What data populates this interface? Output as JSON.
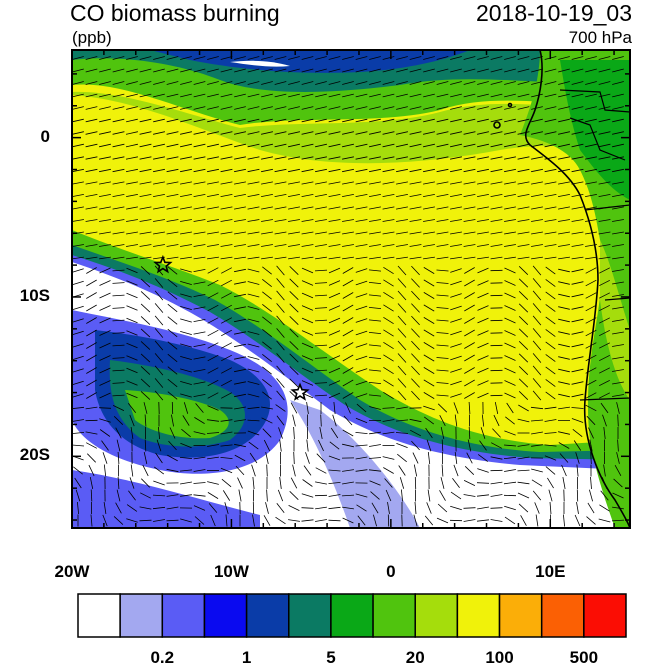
{
  "header": {
    "title": "CO biomass burning",
    "units": "(ppb)",
    "datetime": "2018-10-19_03",
    "level": "700 hPa"
  },
  "axes": {
    "y_ticks": [
      {
        "label": "0",
        "lat": 0
      },
      {
        "label": "10S",
        "lat": -10
      },
      {
        "label": "20S",
        "lat": -20
      }
    ],
    "x_ticks": [
      {
        "label": "20W",
        "lon": -20
      },
      {
        "label": "10W",
        "lon": -10
      },
      {
        "label": "0",
        "lon": 0
      },
      {
        "label": "10E",
        "lon": 10
      }
    ],
    "lon_range": [
      -20,
      15
    ],
    "lat_range": [
      -24.5,
      5.5
    ]
  },
  "colorbar": {
    "colors": [
      "#ffffff",
      "#a3a8f0",
      "#5a5cf5",
      "#0a0af0",
      "#0a3ca8",
      "#0b7a63",
      "#0aa817",
      "#50c40e",
      "#a5dd0c",
      "#f0f20a",
      "#fbae08",
      "#fb6004",
      "#fb0d04"
    ],
    "tick_labels": [
      {
        "label": "0.2",
        "boundary": 2
      },
      {
        "label": "1",
        "boundary": 4
      },
      {
        "label": "5",
        "boundary": 6
      },
      {
        "label": "20",
        "boundary": 8
      },
      {
        "label": "100",
        "boundary": 10
      },
      {
        "label": "500",
        "boundary": 12
      }
    ]
  },
  "markers": [
    {
      "name": "star-marker",
      "lon": -14.3,
      "lat": -8
    },
    {
      "name": "star-marker",
      "lon": -5.7,
      "lat": -16
    }
  ]
}
